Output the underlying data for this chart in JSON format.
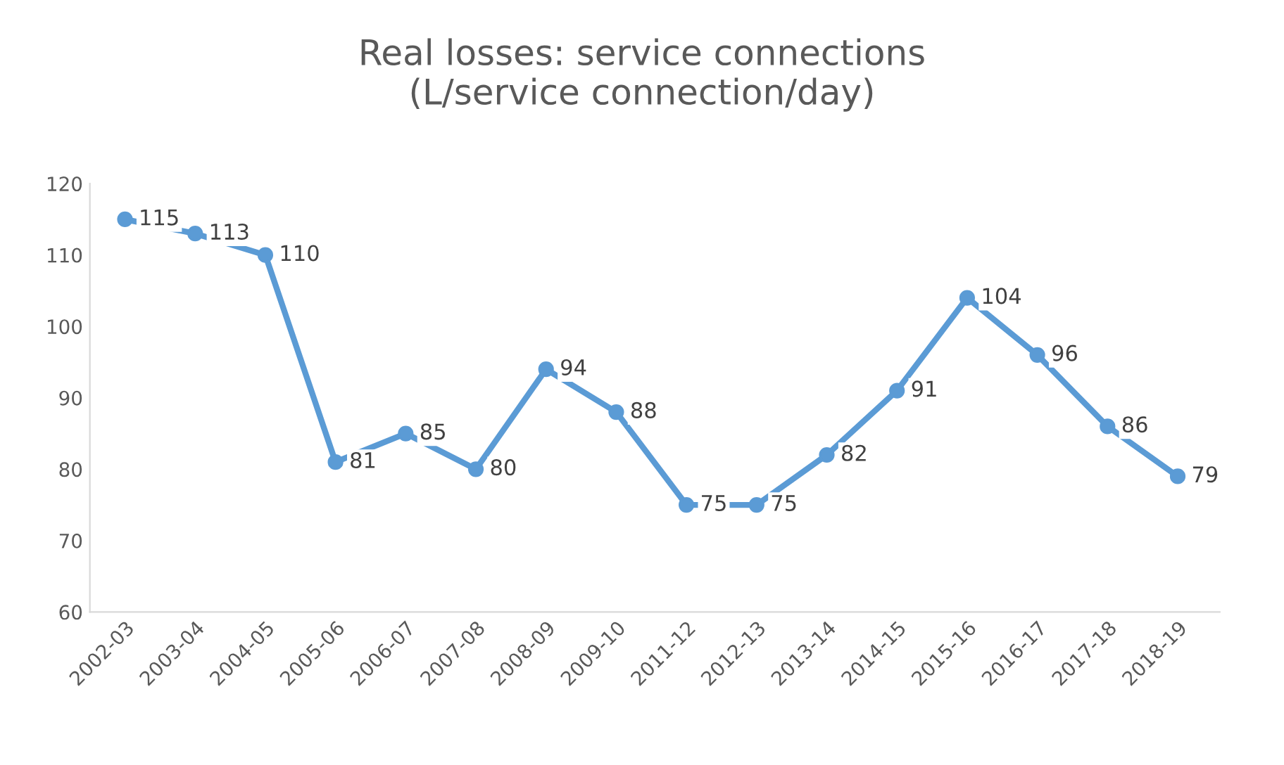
{
  "chart_data": {
    "type": "line",
    "title": "Real losses: service connections\n(L/service connection/day)",
    "categories": [
      "2002-03",
      "2003-04",
      "2004-05",
      "2005-06",
      "2006-07",
      "2007-08",
      "2008-09",
      "2009-10",
      "2011-12",
      "2012-13",
      "2013-14",
      "2014-15",
      "2015-16",
      "2016-17",
      "2017-18",
      "2018-19"
    ],
    "series": [
      {
        "color": "#5b9bd5",
        "values": [
          115,
          113,
          110,
          81,
          85,
          80,
          94,
          88,
          75,
          75,
          82,
          91,
          104,
          96,
          86,
          79
        ]
      }
    ],
    "ylim": [
      60,
      120
    ],
    "yticks": [
      60,
      70,
      80,
      90,
      100,
      110,
      120
    ],
    "grid": false,
    "legend": false,
    "marker": "circle",
    "line_style": "solid",
    "data_labels": true
  }
}
